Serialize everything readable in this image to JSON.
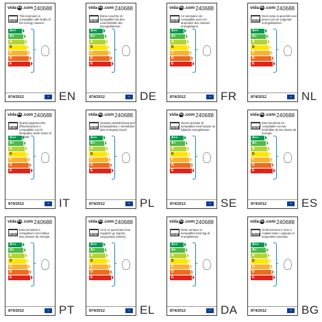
{
  "product_code": "240688",
  "regulation": "874/2012",
  "brand": {
    "before": "vida",
    "mark": "XL",
    "after": ".com"
  },
  "energy_classes": [
    {
      "label": "A++",
      "color": "#009a4e"
    },
    {
      "label": "A+",
      "color": "#50b848"
    },
    {
      "label": "A",
      "color": "#b5d334"
    },
    {
      "label": "B",
      "color": "#ffe500"
    },
    {
      "label": "C",
      "color": "#f9b233"
    },
    {
      "label": "D",
      "color": "#ec6b1f"
    },
    {
      "label": "E",
      "color": "#e2231a"
    }
  ],
  "labels": [
    {
      "lang": "EN",
      "text": "This luminaire is compatible with bulbs of the energy classes:"
    },
    {
      "lang": "DE",
      "text": "Diese Leuchte ist kompatibel mit den Leuchtmitteln der Energieklassen:"
    },
    {
      "lang": "FR",
      "text": "Ce luminaire est compatible avec les ampoules des classes énergétiques:"
    },
    {
      "lang": "NL",
      "text": "Deze lamp is geschikt voor peren van de volgende energieklassen:"
    },
    {
      "lang": "IT",
      "text": "Questo apparecchio d'illuminazione è compatibile con le lampadine delle classi di energia:"
    },
    {
      "lang": "PL",
      "text": "Oprawa oświetleniowa jest kompatybilna z żarówkami klas energetycznych:"
    },
    {
      "lang": "SE",
      "text": "Denna armatur är kompatibel med lampor av följande energiklasser:"
    },
    {
      "lang": "ES",
      "text": "Esta luminaria es compatible con las bombillas de las clases de energía:"
    },
    {
      "lang": "PT",
      "text": "Esta luminária é compatível com bulbos das classes de energia:"
    },
    {
      "lang": "EL",
      "text": "Αυτό το φωτιστικό είναι συμβατό με λάμπες ενεργειακής κλάσης:"
    },
    {
      "lang": "DA",
      "text": "Dette armatur er kompatibel med lag af energiklasser:"
    },
    {
      "lang": "BG",
      "text": "Осветителното тяло е съвместимо с крушки от енергийни класове:"
    }
  ]
}
